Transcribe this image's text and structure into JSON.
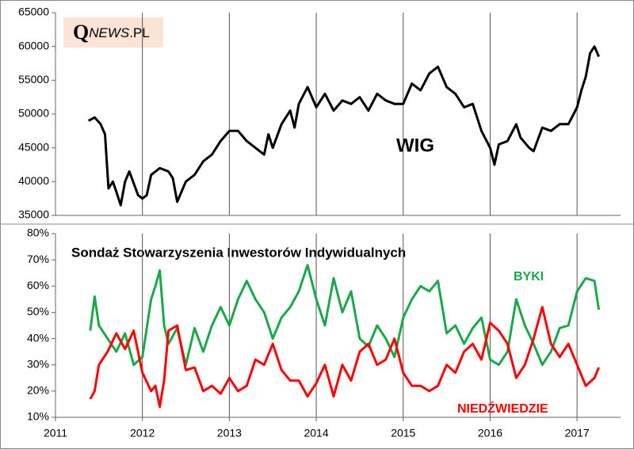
{
  "logo": {
    "q": "Q",
    "news": "NEWS",
    "pl": ".PL"
  },
  "chart_data": [
    {
      "type": "line",
      "annotation": "WIG",
      "xlim": [
        2011,
        2017.5
      ],
      "ylim": [
        35000,
        65000
      ],
      "yticks": [
        35000,
        40000,
        45000,
        50000,
        55000,
        60000,
        65000
      ],
      "series": [
        {
          "name": "WIG",
          "color": "#000000",
          "x": [
            2011.38,
            2011.45,
            2011.52,
            2011.57,
            2011.61,
            2011.66,
            2011.7,
            2011.75,
            2011.8,
            2011.85,
            2011.95,
            2012.0,
            2012.05,
            2012.1,
            2012.2,
            2012.3,
            2012.35,
            2012.4,
            2012.5,
            2012.6,
            2012.7,
            2012.8,
            2012.9,
            2013.0,
            2013.1,
            2013.2,
            2013.3,
            2013.4,
            2013.45,
            2013.5,
            2013.6,
            2013.7,
            2013.75,
            2013.8,
            2013.9,
            2014.0,
            2014.1,
            2014.2,
            2014.3,
            2014.4,
            2014.5,
            2014.6,
            2014.7,
            2014.8,
            2014.9,
            2015.0,
            2015.1,
            2015.2,
            2015.3,
            2015.4,
            2015.5,
            2015.6,
            2015.7,
            2015.8,
            2015.9,
            2016.0,
            2016.05,
            2016.1,
            2016.2,
            2016.3,
            2016.35,
            2016.45,
            2016.5,
            2016.6,
            2016.7,
            2016.8,
            2016.9,
            2017.0,
            2017.05,
            2017.1,
            2017.15,
            2017.2,
            2017.25
          ],
          "values": [
            49000,
            49500,
            48500,
            47000,
            39000,
            40000,
            38500,
            36500,
            40000,
            41500,
            38000,
            37500,
            38000,
            41000,
            42000,
            41500,
            40500,
            37000,
            40000,
            41000,
            43000,
            44000,
            46000,
            47500,
            47500,
            46000,
            45000,
            44000,
            47000,
            45000,
            48500,
            50500,
            48000,
            51500,
            54000,
            51000,
            53000,
            50500,
            52000,
            51500,
            52500,
            50500,
            53000,
            52000,
            51500,
            51500,
            54500,
            53500,
            56000,
            57000,
            54000,
            53000,
            51000,
            51500,
            47500,
            45000,
            42500,
            45500,
            46000,
            48500,
            46500,
            45000,
            44500,
            48000,
            47500,
            48500,
            48500,
            51000,
            53500,
            55500,
            59000,
            60000,
            58500
          ]
        }
      ]
    },
    {
      "type": "line",
      "title": "Sondaż Stowarzyszenia Inwestorów Indywidualnych",
      "xlim": [
        2011,
        2017.5
      ],
      "xticks": [
        2011,
        2012,
        2013,
        2014,
        2015,
        2016,
        2017
      ],
      "ylim": [
        10,
        80
      ],
      "yticks": [
        {
          "value": 10,
          "label": "10%"
        },
        {
          "value": 20,
          "label": "20%"
        },
        {
          "value": 30,
          "label": "30%"
        },
        {
          "value": 40,
          "label": "40%"
        },
        {
          "value": 50,
          "label": "50%"
        },
        {
          "value": 60,
          "label": "60%"
        },
        {
          "value": 70,
          "label": "70%"
        },
        {
          "value": 80,
          "label": "80%"
        }
      ],
      "x": [
        2011.4,
        2011.45,
        2011.5,
        2011.6,
        2011.7,
        2011.8,
        2011.9,
        2012.0,
        2012.1,
        2012.15,
        2012.2,
        2012.25,
        2012.3,
        2012.4,
        2012.5,
        2012.6,
        2012.7,
        2012.8,
        2012.9,
        2013.0,
        2013.1,
        2013.2,
        2013.3,
        2013.4,
        2013.5,
        2013.6,
        2013.7,
        2013.8,
        2013.9,
        2014.0,
        2014.1,
        2014.2,
        2014.3,
        2014.4,
        2014.5,
        2014.6,
        2014.7,
        2014.8,
        2014.9,
        2015.0,
        2015.1,
        2015.2,
        2015.3,
        2015.4,
        2015.5,
        2015.6,
        2015.7,
        2015.8,
        2015.9,
        2016.0,
        2016.1,
        2016.2,
        2016.3,
        2016.4,
        2016.5,
        2016.6,
        2016.7,
        2016.8,
        2016.9,
        2017.0,
        2017.1,
        2017.2,
        2017.25
      ],
      "series": [
        {
          "name": "BYKI",
          "color": "#1aa84a",
          "values": [
            43,
            56,
            45,
            40,
            35,
            42,
            30,
            33,
            55,
            60,
            66,
            45,
            38,
            44,
            30,
            44,
            35,
            45,
            52,
            45,
            55,
            62,
            55,
            50,
            40,
            48,
            52,
            58,
            68,
            55,
            45,
            63,
            50,
            58,
            40,
            37,
            45,
            40,
            33,
            48,
            55,
            60,
            58,
            62,
            42,
            45,
            38,
            44,
            48,
            32,
            30,
            35,
            55,
            45,
            38,
            30,
            35,
            44,
            45,
            58,
            63,
            62,
            51
          ]
        },
        {
          "name": "NIEDŹWIEDZIE",
          "color": "#ff0000",
          "values": [
            17,
            20,
            30,
            35,
            42,
            36,
            43,
            27,
            20,
            22,
            14,
            24,
            43,
            45,
            28,
            29,
            20,
            22,
            19,
            25,
            20,
            22,
            32,
            30,
            38,
            28,
            24,
            24,
            18,
            23,
            30,
            18,
            30,
            24,
            35,
            38,
            30,
            32,
            40,
            27,
            22,
            22,
            20,
            22,
            30,
            27,
            35,
            38,
            32,
            46,
            43,
            38,
            25,
            30,
            40,
            52,
            38,
            33,
            38,
            30,
            22,
            25,
            29
          ]
        }
      ]
    }
  ]
}
